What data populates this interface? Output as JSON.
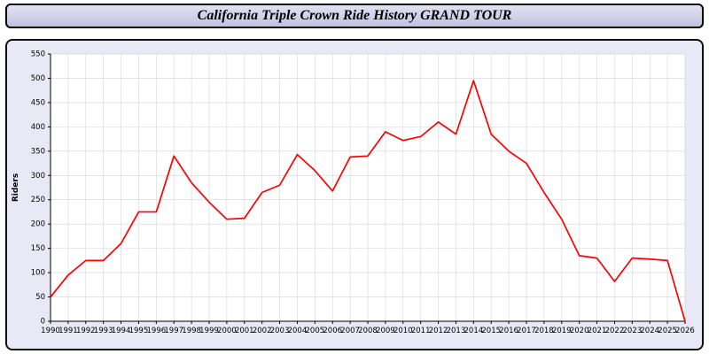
{
  "title": "California Triple Crown Ride History GRAND TOUR",
  "colors": {
    "line": "#ff0000",
    "grid": "#d6d6d6",
    "axis": "#000000",
    "plot_bg": "#ffffff",
    "panel_bg": "#e9e9f5",
    "text": "#000000"
  },
  "chart_data": {
    "type": "line",
    "title": "California Triple Crown Ride History GRAND TOUR",
    "xlabel": "",
    "ylabel": "Riders",
    "ylim": [
      0,
      550
    ],
    "ytick_step": 50,
    "grid": true,
    "legend": "none",
    "categories": [
      1990,
      1991,
      1992,
      1993,
      1994,
      1995,
      1996,
      1997,
      1998,
      1999,
      2000,
      2001,
      2002,
      2003,
      2004,
      2005,
      2006,
      2007,
      2008,
      2009,
      2010,
      2011,
      2012,
      2013,
      2014,
      2015,
      2016,
      2017,
      2018,
      2019,
      2020,
      2021,
      2022,
      2023,
      2024,
      2025,
      2026
    ],
    "values": [
      50,
      95,
      125,
      125,
      160,
      225,
      225,
      340,
      285,
      245,
      210,
      212,
      265,
      280,
      343,
      310,
      268,
      338,
      340,
      390,
      372,
      380,
      410,
      385,
      495,
      385,
      350,
      325,
      265,
      210,
      135,
      130,
      82,
      130,
      128,
      125,
      0
    ]
  }
}
